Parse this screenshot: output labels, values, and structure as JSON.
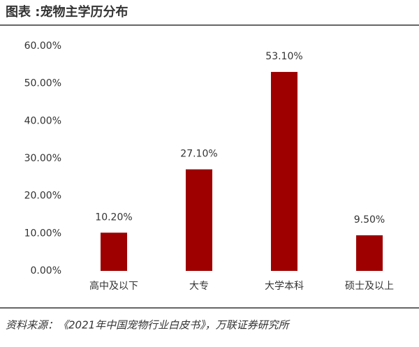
{
  "chart_data": {
    "type": "bar",
    "title": "图表 :宠物主学历分布",
    "categories": [
      "高中及以下",
      "大专",
      "大学本科",
      "硕士及以上"
    ],
    "values": [
      10.2,
      27.1,
      53.1,
      9.5
    ],
    "value_labels": [
      "10.20%",
      "27.10%",
      "53.10%",
      "9.50%"
    ],
    "color": "#9e0000",
    "ylim": [
      0,
      60
    ],
    "yticks": [
      {
        "value": 0,
        "label": "0.00%"
      },
      {
        "value": 10,
        "label": "10.00%"
      },
      {
        "value": 20,
        "label": "20.00%"
      },
      {
        "value": 30,
        "label": "30.00%"
      },
      {
        "value": 40,
        "label": "40.00%"
      },
      {
        "value": 50,
        "label": "50.00%"
      },
      {
        "value": 60,
        "label": "60.00%"
      }
    ],
    "grid": false,
    "source": "资料来源：《2021年中国宠物行业白皮书》，万联证券研究所"
  }
}
